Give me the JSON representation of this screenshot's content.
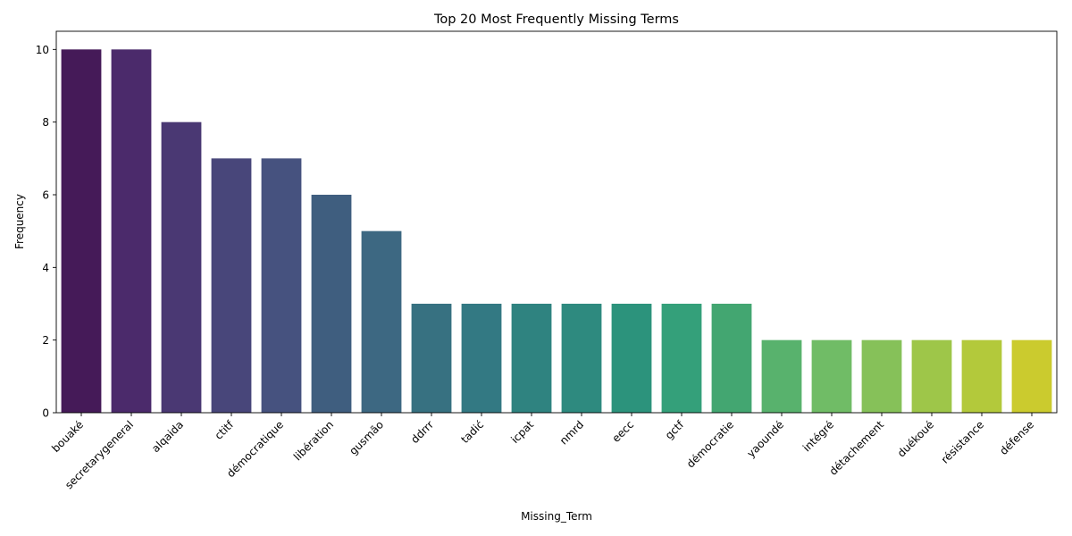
{
  "chart_data": {
    "type": "bar",
    "title": "Top 20 Most Frequently Missing Terms",
    "xlabel": "Missing_Term",
    "ylabel": "Frequency",
    "ylim": [
      0,
      10.5
    ],
    "yticks": [
      0,
      2,
      4,
      6,
      8,
      10
    ],
    "grid": false,
    "legend": "none",
    "colormap": "viridis",
    "categories": [
      "bouaké",
      "secretarygeneral",
      "alqaida",
      "ctitf",
      "démocratique",
      "libération",
      "gusmão",
      "ddrrr",
      "tadić",
      "icpat",
      "nmrd",
      "eecc",
      "gctf",
      "démocratie",
      "yaoundé",
      "intégré",
      "détachement",
      "duékoué",
      "résistance",
      "défense"
    ],
    "values": [
      10,
      10,
      8,
      7,
      7,
      6,
      5,
      3,
      3,
      3,
      3,
      3,
      3,
      3,
      2,
      2,
      2,
      2,
      2,
      2
    ],
    "colors": [
      "#451a58",
      "#4b2a6b",
      "#4a3873",
      "#48467a",
      "#46527f",
      "#3f5e7f",
      "#3d6882",
      "#377181",
      "#337983",
      "#2f8380",
      "#2e8a7f",
      "#2c937c",
      "#34a07a",
      "#43a671",
      "#58b26d",
      "#70bc66",
      "#86c159",
      "#9ec649",
      "#b3c93b",
      "#cbcb2e"
    ]
  }
}
